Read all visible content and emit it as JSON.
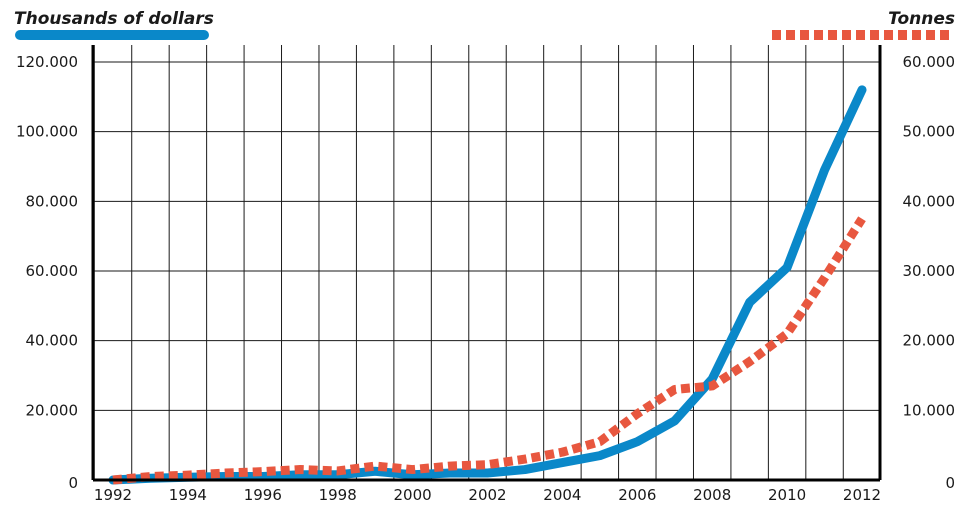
{
  "chart_data": {
    "type": "line",
    "left_axis_title": "Thousands of dollars",
    "right_axis_title": "Tonnes",
    "x": [
      1992,
      1993,
      1994,
      1995,
      1996,
      1997,
      1998,
      1999,
      2000,
      2001,
      2002,
      2003,
      2004,
      2005,
      2006,
      2007,
      2008,
      2009,
      2010,
      2011,
      2012
    ],
    "x_tick_labels": [
      "1992",
      "1994",
      "1996",
      "1998",
      "2000",
      "2002",
      "2004",
      "2006",
      "2008",
      "2010",
      "2012"
    ],
    "left_tick_labels": [
      "0",
      "20.000",
      "40.000",
      "60.000",
      "80.000",
      "100.000",
      "120.000"
    ],
    "right_tick_labels": [
      "0",
      "10.000",
      "20.000",
      "30.000",
      "40.000",
      "50.000",
      "60.000"
    ],
    "ylim_left": [
      0,
      120000
    ],
    "ylim_right": [
      0,
      60000
    ],
    "grid": true,
    "series": [
      {
        "axis": "left",
        "color": "#0a88c9",
        "style": "solid",
        "values": [
          0,
          500,
          800,
          1000,
          1000,
          1500,
          1500,
          2500,
          1500,
          2000,
          2000,
          3000,
          5000,
          7000,
          11000,
          17000,
          29000,
          51000,
          61000,
          89000,
          112000
        ]
      },
      {
        "axis": "right",
        "color": "#e8573f",
        "style": "dashed",
        "values": [
          0,
          500,
          700,
          1000,
          1200,
          1500,
          1300,
          2000,
          1500,
          2000,
          2200,
          3000,
          4000,
          5500,
          9500,
          13000,
          13500,
          17000,
          21000,
          29000,
          37500
        ]
      }
    ]
  }
}
